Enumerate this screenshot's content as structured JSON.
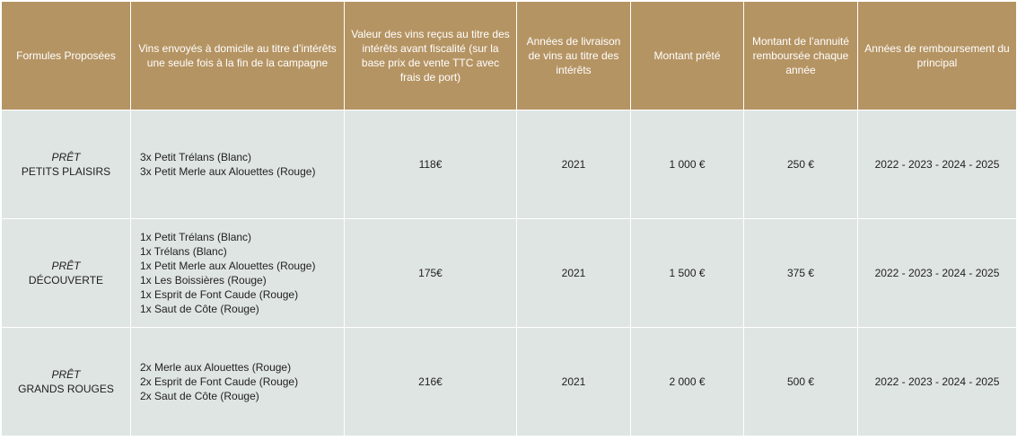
{
  "headers": {
    "formula": "Formules Proposées",
    "wines": "Vins envoyés à domicile  au titre d’intérêts une seule fois à la fin de la campagne",
    "value": "Valeur des vins reçus au titre des intérêts avant fiscalité (sur la base prix de vente TTC avec frais de port)",
    "delivery_years": "Années de livraison de vins au titre des intérêts",
    "amount": "Montant prêté",
    "annuity": "Montant de l’annuité remboursée chaque année",
    "repayment_years": "Années de remboursement du principal"
  },
  "rows": [
    {
      "type": "PRÊT",
      "name": "PETITS PLAISIRS",
      "wines": [
        "3x Petit Trélans (Blanc)",
        "3x Petit Merle aux Alouettes (Rouge)"
      ],
      "value": "118€",
      "delivery_year": "2021",
      "amount": "1 000 €",
      "annuity": "250 €",
      "repayment_years": "2022 - 2023 - 2024 - 2025"
    },
    {
      "type": "PRÊT",
      "name": "DÉCOUVERTE",
      "wines": [
        "1x Petit Trélans (Blanc)",
        "1x Trélans (Blanc)",
        "1x Petit Merle aux Alouettes (Rouge)",
        "1x Les Boissières (Rouge)",
        "1x Esprit de Font Caude (Rouge)",
        "1x Saut de Côte (Rouge)"
      ],
      "value": "175€",
      "delivery_year": "2021",
      "amount": "1 500 €",
      "annuity": "375 €",
      "repayment_years": "2022 - 2023 - 2024 - 2025"
    },
    {
      "type": "PRÊT",
      "name": "GRANDS ROUGES",
      "wines": [
        "2x Merle aux Alouettes (Rouge)",
        "2x Esprit de Font Caude (Rouge)",
        "2x Saut de Côte (Rouge)"
      ],
      "value": "216€",
      "delivery_year": "2021",
      "amount": "2 000 €",
      "annuity": "500 €",
      "repayment_years": "2022 - 2023 - 2024 - 2025"
    }
  ],
  "colors": {
    "header_bg": "#b59463",
    "cell_bg": "#dfe5e3",
    "header_text": "#ffffff"
  }
}
